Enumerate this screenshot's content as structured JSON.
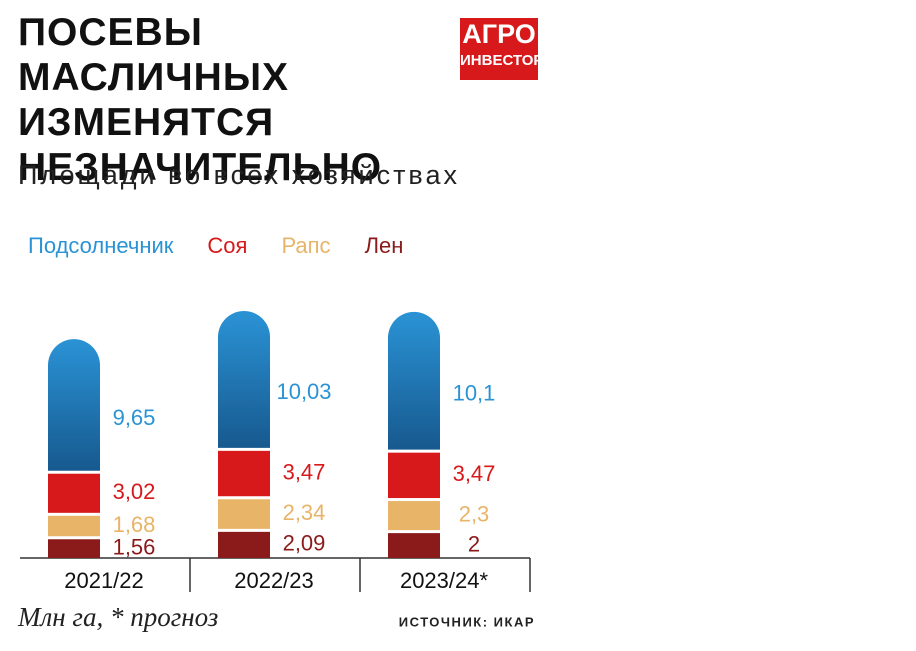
{
  "chart_data": {
    "type": "stacked_bar",
    "title": "ПОСЕВЫ МАСЛИЧНЫХ ИЗМЕНЯТСЯ НЕЗНАЧИТЕЛЬНО",
    "subtitle": "Площади во всех хозяйствах",
    "logo": {
      "top": "АГРО",
      "bottom": "ИНВЕСТОР"
    },
    "note": "Млн га, * прогноз",
    "source": "ИСТОЧНИК: ИКАР",
    "categories": [
      "2021/22",
      "2022/23",
      "2023/24*"
    ],
    "series": [
      {
        "name": "Подсолнечник",
        "color": "#2a93d5",
        "values": [
          9.65,
          10.03,
          10.1
        ],
        "value_labels": [
          "9,65",
          "10,03",
          "10,1"
        ]
      },
      {
        "name": "Соя",
        "color": "#d7191c",
        "values": [
          3.02,
          3.47,
          3.47
        ],
        "value_labels": [
          "3,02",
          "3,47",
          "3,47"
        ]
      },
      {
        "name": "Рапс",
        "color": "#e8b468",
        "values": [
          1.68,
          2.34,
          2.3
        ],
        "value_labels": [
          "1,68",
          "2,34",
          "2,3"
        ]
      },
      {
        "name": "Лен",
        "color": "#8b1a1a",
        "values": [
          1.56,
          2.09,
          2
        ],
        "value_labels": [
          "1,56",
          "2,09",
          "2"
        ]
      }
    ]
  }
}
